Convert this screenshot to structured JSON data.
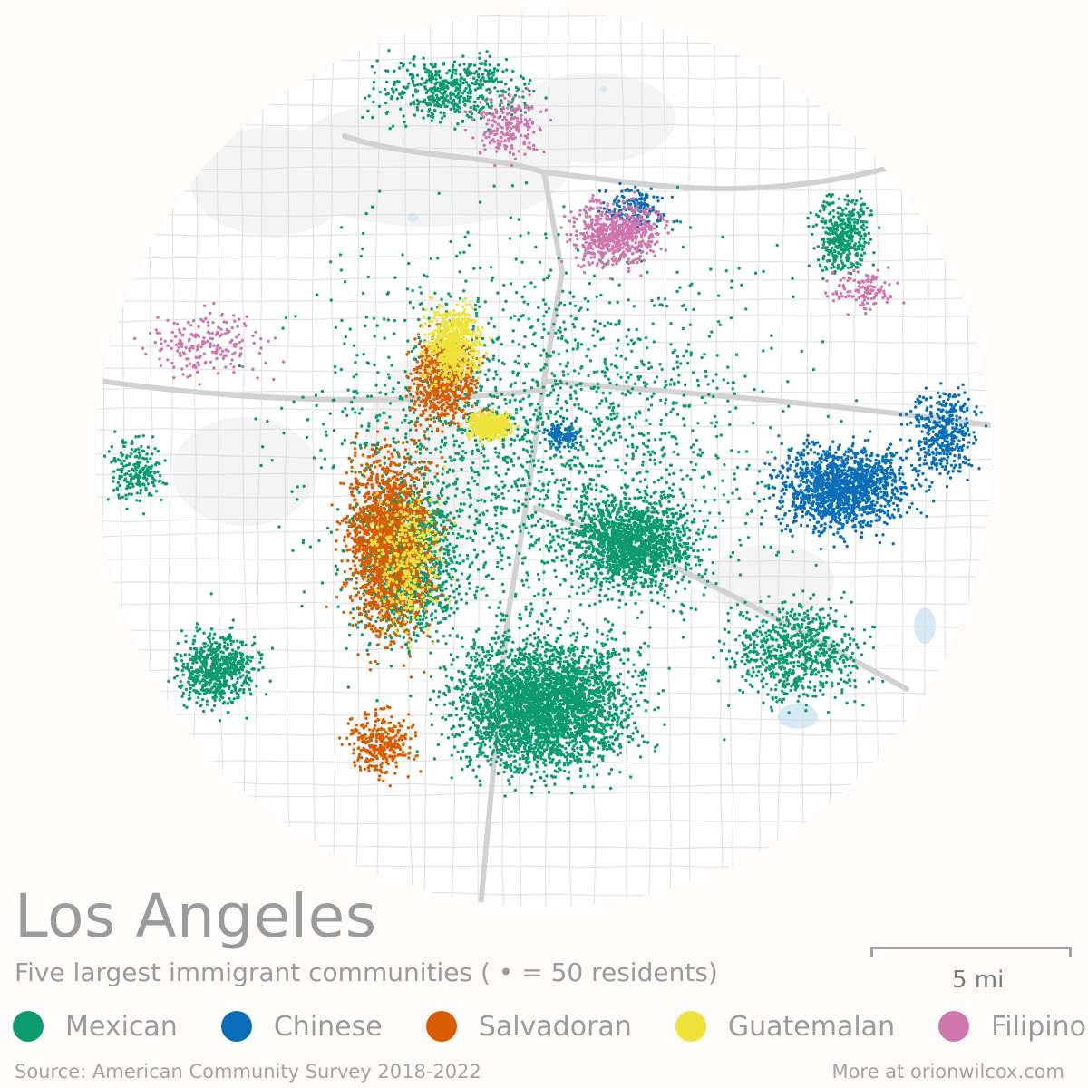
{
  "title": "Los Angeles",
  "subtitle": "Five largest immigrant communities ( • = 50 residents)",
  "scale_label": "5 mi",
  "legend": [
    {
      "label": "Mexican",
      "color": "#0c9b6e"
    },
    {
      "label": "Chinese",
      "color": "#0a6fb8"
    },
    {
      "label": "Salvadoran",
      "color": "#d95c00"
    },
    {
      "label": "Guatemalan",
      "color": "#efe33b"
    },
    {
      "label": "Filipino",
      "color": "#cf76ac"
    }
  ],
  "source": "Source: American Community Survey 2018-2022",
  "more": "More at orionwilcox.com",
  "colors": {
    "road": "#dadada",
    "water": "#d6e9f7",
    "text": "#9b9b9b"
  }
}
